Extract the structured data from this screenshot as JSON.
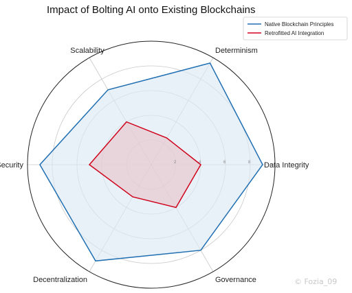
{
  "chart_data": {
    "type": "radar",
    "title": "Impact of Bolting AI onto Existing Blockchains",
    "categories": [
      "Data Integrity",
      "Determinism",
      "Scalability",
      "Security",
      "Decentralization",
      "Governance"
    ],
    "rlim": [
      0,
      10
    ],
    "ticks": [
      2,
      4,
      6,
      8
    ],
    "grid": true,
    "legend_position": "top-right",
    "series": [
      {
        "name": "Native Blockchain Principles",
        "values": [
          9,
          9.5,
          7,
          9,
          9,
          8
        ],
        "color": "#1f6fb2",
        "fill": "#dce8f4"
      },
      {
        "name": "Retrofitted AI Integration",
        "values": [
          4,
          2.5,
          4,
          5,
          3,
          4
        ],
        "color": "#d0021b",
        "fill": "#e8c4cb"
      }
    ]
  },
  "watermark": "© Fozia_09"
}
